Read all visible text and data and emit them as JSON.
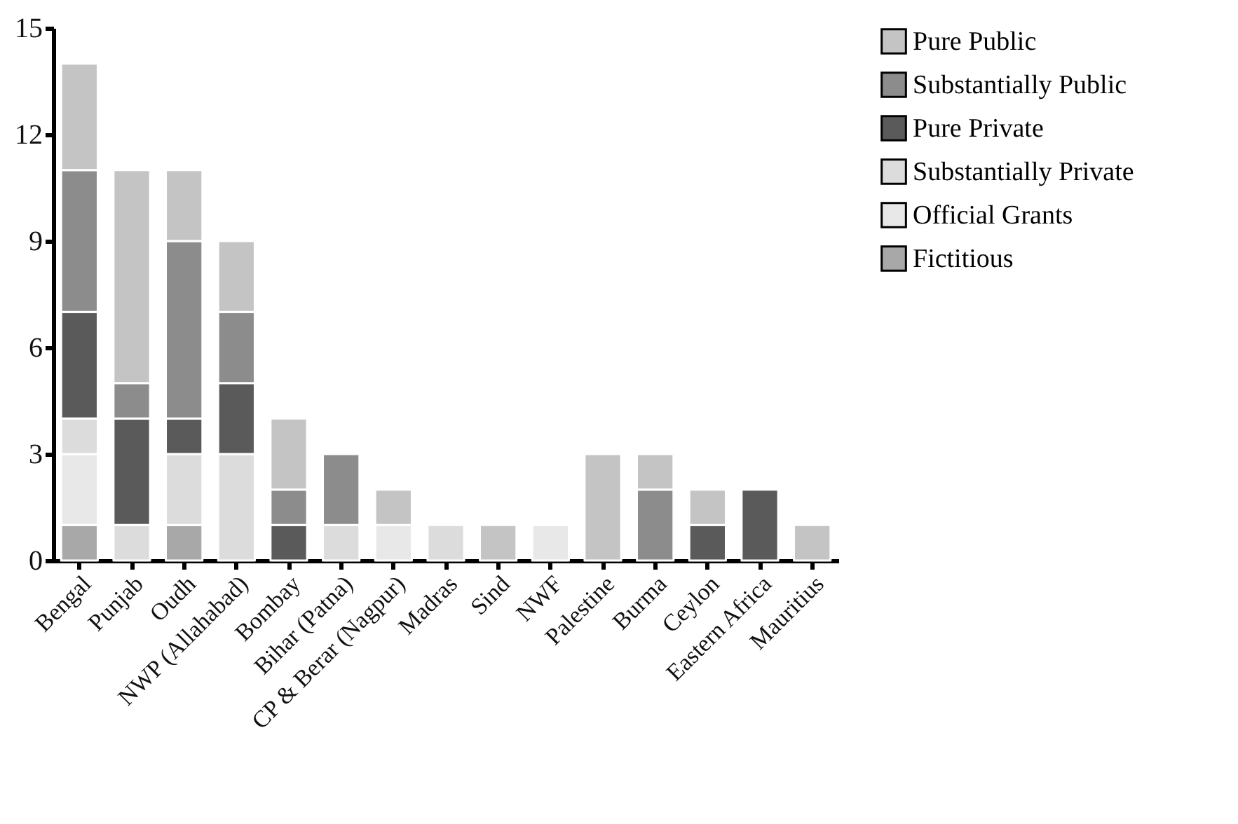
{
  "chart_data": {
    "type": "bar",
    "stacked": true,
    "categories": [
      "Bengal",
      "Punjab",
      "Oudh",
      "NWP (Allahabad)",
      "Bombay",
      "Bihar (Patna)",
      "CP & Berar (Nagpur)",
      "Madras",
      "Sind",
      "NWF",
      "Palestine",
      "Burma",
      "Ceylon",
      "Eastern Africa",
      "Mauritius"
    ],
    "series": [
      {
        "name": "Fictitious",
        "color": "#a8a8a8",
        "values": [
          1,
          0,
          1,
          0,
          0,
          0,
          0,
          0,
          0,
          0,
          0,
          0,
          0,
          0,
          0
        ]
      },
      {
        "name": "Official Grants",
        "color": "#e8e8e8",
        "values": [
          2,
          0,
          0,
          0,
          0,
          0,
          1,
          0,
          0,
          1,
          0,
          0,
          0,
          0,
          0
        ]
      },
      {
        "name": "Substantially Private",
        "color": "#dcdcdc",
        "values": [
          1,
          1,
          2,
          3,
          0,
          1,
          0,
          1,
          0,
          0,
          0,
          0,
          0,
          0,
          0
        ]
      },
      {
        "name": "Pure Private",
        "color": "#5a5a5a",
        "values": [
          3,
          3,
          1,
          2,
          1,
          0,
          0,
          0,
          0,
          0,
          0,
          0,
          1,
          2,
          0
        ]
      },
      {
        "name": "Substantially Public",
        "color": "#8c8c8c",
        "values": [
          4,
          1,
          5,
          2,
          1,
          2,
          0,
          0,
          0,
          0,
          0,
          2,
          0,
          0,
          0
        ]
      },
      {
        "name": "Pure Public",
        "color": "#c4c4c4",
        "values": [
          3,
          6,
          2,
          2,
          2,
          0,
          1,
          0,
          1,
          0,
          3,
          1,
          1,
          0,
          1
        ]
      }
    ],
    "ylim": [
      0,
      15
    ],
    "yticks": [
      0,
      3,
      6,
      9,
      12,
      15
    ],
    "grid": false,
    "legend": "right"
  }
}
